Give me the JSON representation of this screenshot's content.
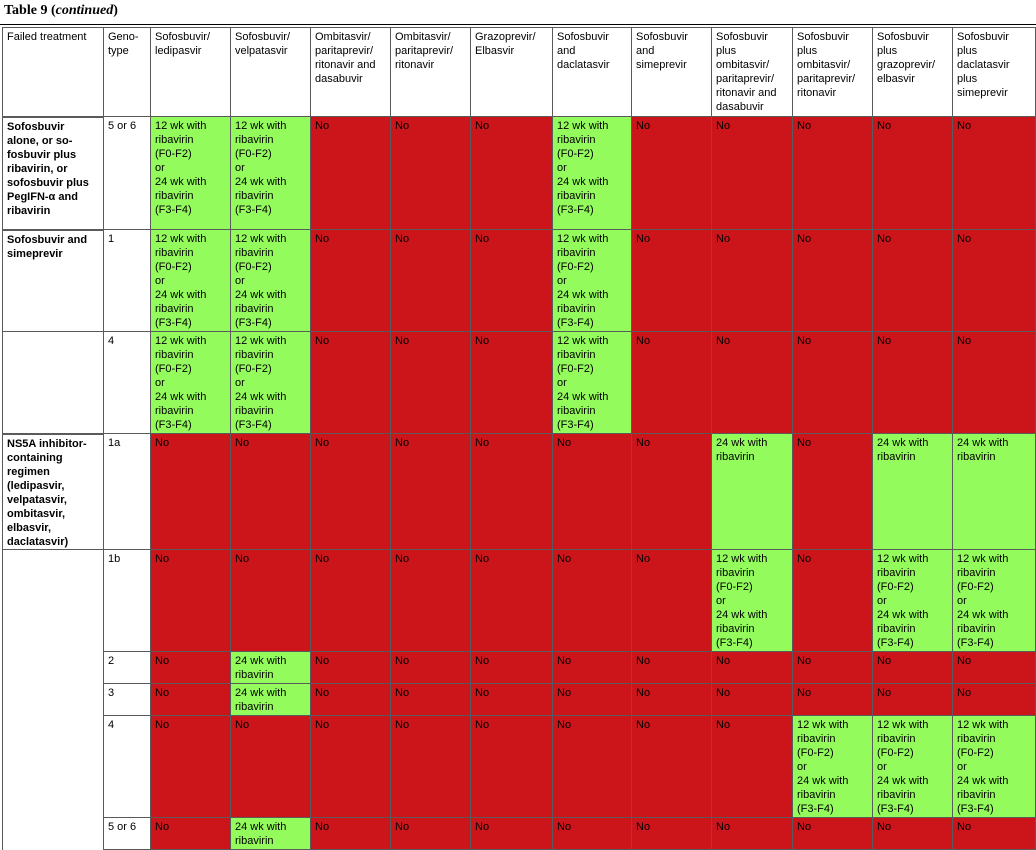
{
  "caption": {
    "label": "Table 9",
    "paren_open": " (",
    "continued": "continued",
    "paren_close": ")"
  },
  "colors": {
    "green": "#94fb5d",
    "red": "#cc151b"
  },
  "headers": [
    "Failed treatment",
    "Geno-\ntype",
    "Sofosbuvir/\nledipasvir",
    "Sofosbuvir/\nvelpatasvir",
    "Ombitasvir/\nparitaprevir/\nritonavir and\ndasabuvir",
    "Ombitasvir/\nparitaprevir/\nritonavir",
    "Grazoprevir/\nElbasvir",
    "Sofosbuvir\nand\ndaclatasvir",
    "Sofosbuvir\nand\nsimeprevir",
    "Sofosbuvir\nplus\nombitasvir/\nparitaprevir/\nritonavir and\ndasabuvir",
    "Sofosbuvir\nplus\nombitasvir/\nparitaprevir/\nritonavir",
    "Sofosbuvir\nplus\ngrazoprevir/\nelbasvir",
    "Sofosbuvir\nplus\ndaclatasvir\nplus\nsimeprevir"
  ],
  "rows": [
    {
      "failed": "Sofosbuvir\nalone, or so-\nfosbuvir plus\nribavirin, or\nsofosbuvir plus\nPegIFN-α and\nribavirin",
      "genotype": "5 or 6",
      "cells": [
        {
          "c": "g",
          "t": "12 wk with\nribavirin\n(F0-F2)\nor\n24 wk with\nribavirin\n(F3-F4)"
        },
        {
          "c": "g",
          "t": "12 wk with\nribavirin\n(F0-F2)\nor\n24 wk with\nribavirin\n(F3-F4)"
        },
        {
          "c": "r",
          "t": "No"
        },
        {
          "c": "r",
          "t": "No"
        },
        {
          "c": "r",
          "t": "No"
        },
        {
          "c": "g",
          "t": "12 wk with\nribavirin\n(F0-F2)\nor\n24 wk with\nribavirin\n(F3-F4)"
        },
        {
          "c": "r",
          "t": "No"
        },
        {
          "c": "r",
          "t": "No"
        },
        {
          "c": "r",
          "t": "No"
        },
        {
          "c": "r",
          "t": "No"
        },
        {
          "c": "r",
          "t": "No"
        }
      ]
    },
    {
      "failed": "Sofosbuvir and\nsimeprevir",
      "genotype": "1",
      "cells": [
        {
          "c": "g",
          "t": "12 wk with\nribavirin\n(F0-F2)\nor\n24 wk with\nribavirin\n(F3-F4)"
        },
        {
          "c": "g",
          "t": "12 wk with\nribavirin\n(F0-F2)\nor\n24 wk with\nribavirin\n(F3-F4)"
        },
        {
          "c": "r",
          "t": "No"
        },
        {
          "c": "r",
          "t": "No"
        },
        {
          "c": "r",
          "t": "No"
        },
        {
          "c": "g",
          "t": "12 wk with\nribavirin\n(F0-F2)\nor\n24 wk with\nribavirin\n(F3-F4)"
        },
        {
          "c": "r",
          "t": "No"
        },
        {
          "c": "r",
          "t": "No"
        },
        {
          "c": "r",
          "t": "No"
        },
        {
          "c": "r",
          "t": "No"
        },
        {
          "c": "r",
          "t": "No"
        }
      ]
    },
    {
      "failed": "",
      "genotype": "4",
      "cells": [
        {
          "c": "g",
          "t": "12 wk with\nribavirin\n(F0-F2)\nor\n24 wk with\nribavirin\n(F3-F4)"
        },
        {
          "c": "g",
          "t": "12 wk with\nribavirin\n(F0-F2)\nor\n24 wk with\nribavirin\n(F3-F4)"
        },
        {
          "c": "r",
          "t": "No"
        },
        {
          "c": "r",
          "t": "No"
        },
        {
          "c": "r",
          "t": "No"
        },
        {
          "c": "g",
          "t": "12 wk with\nribavirin\n(F0-F2)\nor\n24 wk with\nribavirin\n(F3-F4)"
        },
        {
          "c": "r",
          "t": "No"
        },
        {
          "c": "r",
          "t": "No"
        },
        {
          "c": "r",
          "t": "No"
        },
        {
          "c": "r",
          "t": "No"
        },
        {
          "c": "r",
          "t": "No"
        }
      ]
    },
    {
      "failed": "NS5A inhibitor-\ncontaining\nregimen\n(ledipasvir,\nvelpatasvir,\nombitasvir,\nelbasvir,\ndaclatasvir)",
      "genotype": "1a",
      "cells": [
        {
          "c": "r",
          "t": "No"
        },
        {
          "c": "r",
          "t": "No"
        },
        {
          "c": "r",
          "t": "No"
        },
        {
          "c": "r",
          "t": "No"
        },
        {
          "c": "r",
          "t": "No"
        },
        {
          "c": "r",
          "t": "No"
        },
        {
          "c": "r",
          "t": "No"
        },
        {
          "c": "g",
          "t": "24 wk with\nribavirin"
        },
        {
          "c": "r",
          "t": "No"
        },
        {
          "c": "g",
          "t": "24 wk with\nribavirin"
        },
        {
          "c": "g",
          "t": " 24 wk with\nribavirin"
        }
      ]
    },
    {
      "failed": "",
      "genotype": "1b",
      "cells": [
        {
          "c": "r",
          "t": "No"
        },
        {
          "c": "r",
          "t": "No"
        },
        {
          "c": "r",
          "t": "No"
        },
        {
          "c": "r",
          "t": "No"
        },
        {
          "c": "r",
          "t": "No"
        },
        {
          "c": "r",
          "t": "No"
        },
        {
          "c": "r",
          "t": "No"
        },
        {
          "c": "g",
          "t": "12 wk with\nribavirin\n(F0-F2)\nor\n24 wk with\nribavirin\n(F3-F4)"
        },
        {
          "c": "r",
          "t": "No"
        },
        {
          "c": "g",
          "t": "12 wk with\nribavirin\n(F0-F2)\nor\n24 wk with\nribavirin\n(F3-F4)"
        },
        {
          "c": "g",
          "t": "12 wk with\nribavirin\n(F0-F2)\nor\n24 wk with\nribavirin\n(F3-F4)"
        }
      ]
    },
    {
      "failed": "",
      "genotype": "2",
      "cells": [
        {
          "c": "r",
          "t": "No"
        },
        {
          "c": "g",
          "t": "24 wk with\nribavirin"
        },
        {
          "c": "r",
          "t": "No"
        },
        {
          "c": "r",
          "t": "No"
        },
        {
          "c": "r",
          "t": "No"
        },
        {
          "c": "r",
          "t": "No"
        },
        {
          "c": "r",
          "t": "No"
        },
        {
          "c": "r",
          "t": "No"
        },
        {
          "c": "r",
          "t": "No"
        },
        {
          "c": "r",
          "t": "No"
        },
        {
          "c": "r",
          "t": "No"
        }
      ]
    },
    {
      "failed": "",
      "genotype": "3",
      "cells": [
        {
          "c": "r",
          "t": "No"
        },
        {
          "c": "g",
          "t": "24 wk with\nribavirin"
        },
        {
          "c": "r",
          "t": "No"
        },
        {
          "c": "r",
          "t": "No"
        },
        {
          "c": "r",
          "t": "No"
        },
        {
          "c": "r",
          "t": "No"
        },
        {
          "c": "r",
          "t": "No"
        },
        {
          "c": "r",
          "t": "No"
        },
        {
          "c": "r",
          "t": "No"
        },
        {
          "c": "r",
          "t": "No"
        },
        {
          "c": "r",
          "t": "No"
        }
      ]
    },
    {
      "failed": "",
      "genotype": "4",
      "cells": [
        {
          "c": "r",
          "t": "No"
        },
        {
          "c": "r",
          "t": "No"
        },
        {
          "c": "r",
          "t": "No"
        },
        {
          "c": "r",
          "t": "No"
        },
        {
          "c": "r",
          "t": "No"
        },
        {
          "c": "r",
          "t": "No"
        },
        {
          "c": "r",
          "t": "No"
        },
        {
          "c": "r",
          "t": "No"
        },
        {
          "c": "g",
          "t": "12 wk with\nribavirin\n(F0-F2)\nor\n24 wk with\nribavirin\n(F3-F4)"
        },
        {
          "c": "g",
          "t": "12 wk with\nribavirin\n(F0-F2)\nor\n24 wk with\nribavirin\n(F3-F4)"
        },
        {
          "c": "g",
          "t": "12 wk with\nribavirin\n(F0-F2)\nor\n24 wk with\nribavirin\n(F3-F4)"
        }
      ]
    },
    {
      "failed": "",
      "genotype": "5 or 6",
      "cells": [
        {
          "c": "r",
          "t": "No"
        },
        {
          "c": "g",
          "t": "24 wk with\nribavirin"
        },
        {
          "c": "r",
          "t": "No"
        },
        {
          "c": "r",
          "t": "No"
        },
        {
          "c": "r",
          "t": "No"
        },
        {
          "c": "r",
          "t": "No"
        },
        {
          "c": "r",
          "t": "No"
        },
        {
          "c": "r",
          "t": "No"
        },
        {
          "c": "r",
          "t": "No"
        },
        {
          "c": "r",
          "t": "No"
        },
        {
          "c": "r",
          "t": "No"
        }
      ]
    }
  ]
}
